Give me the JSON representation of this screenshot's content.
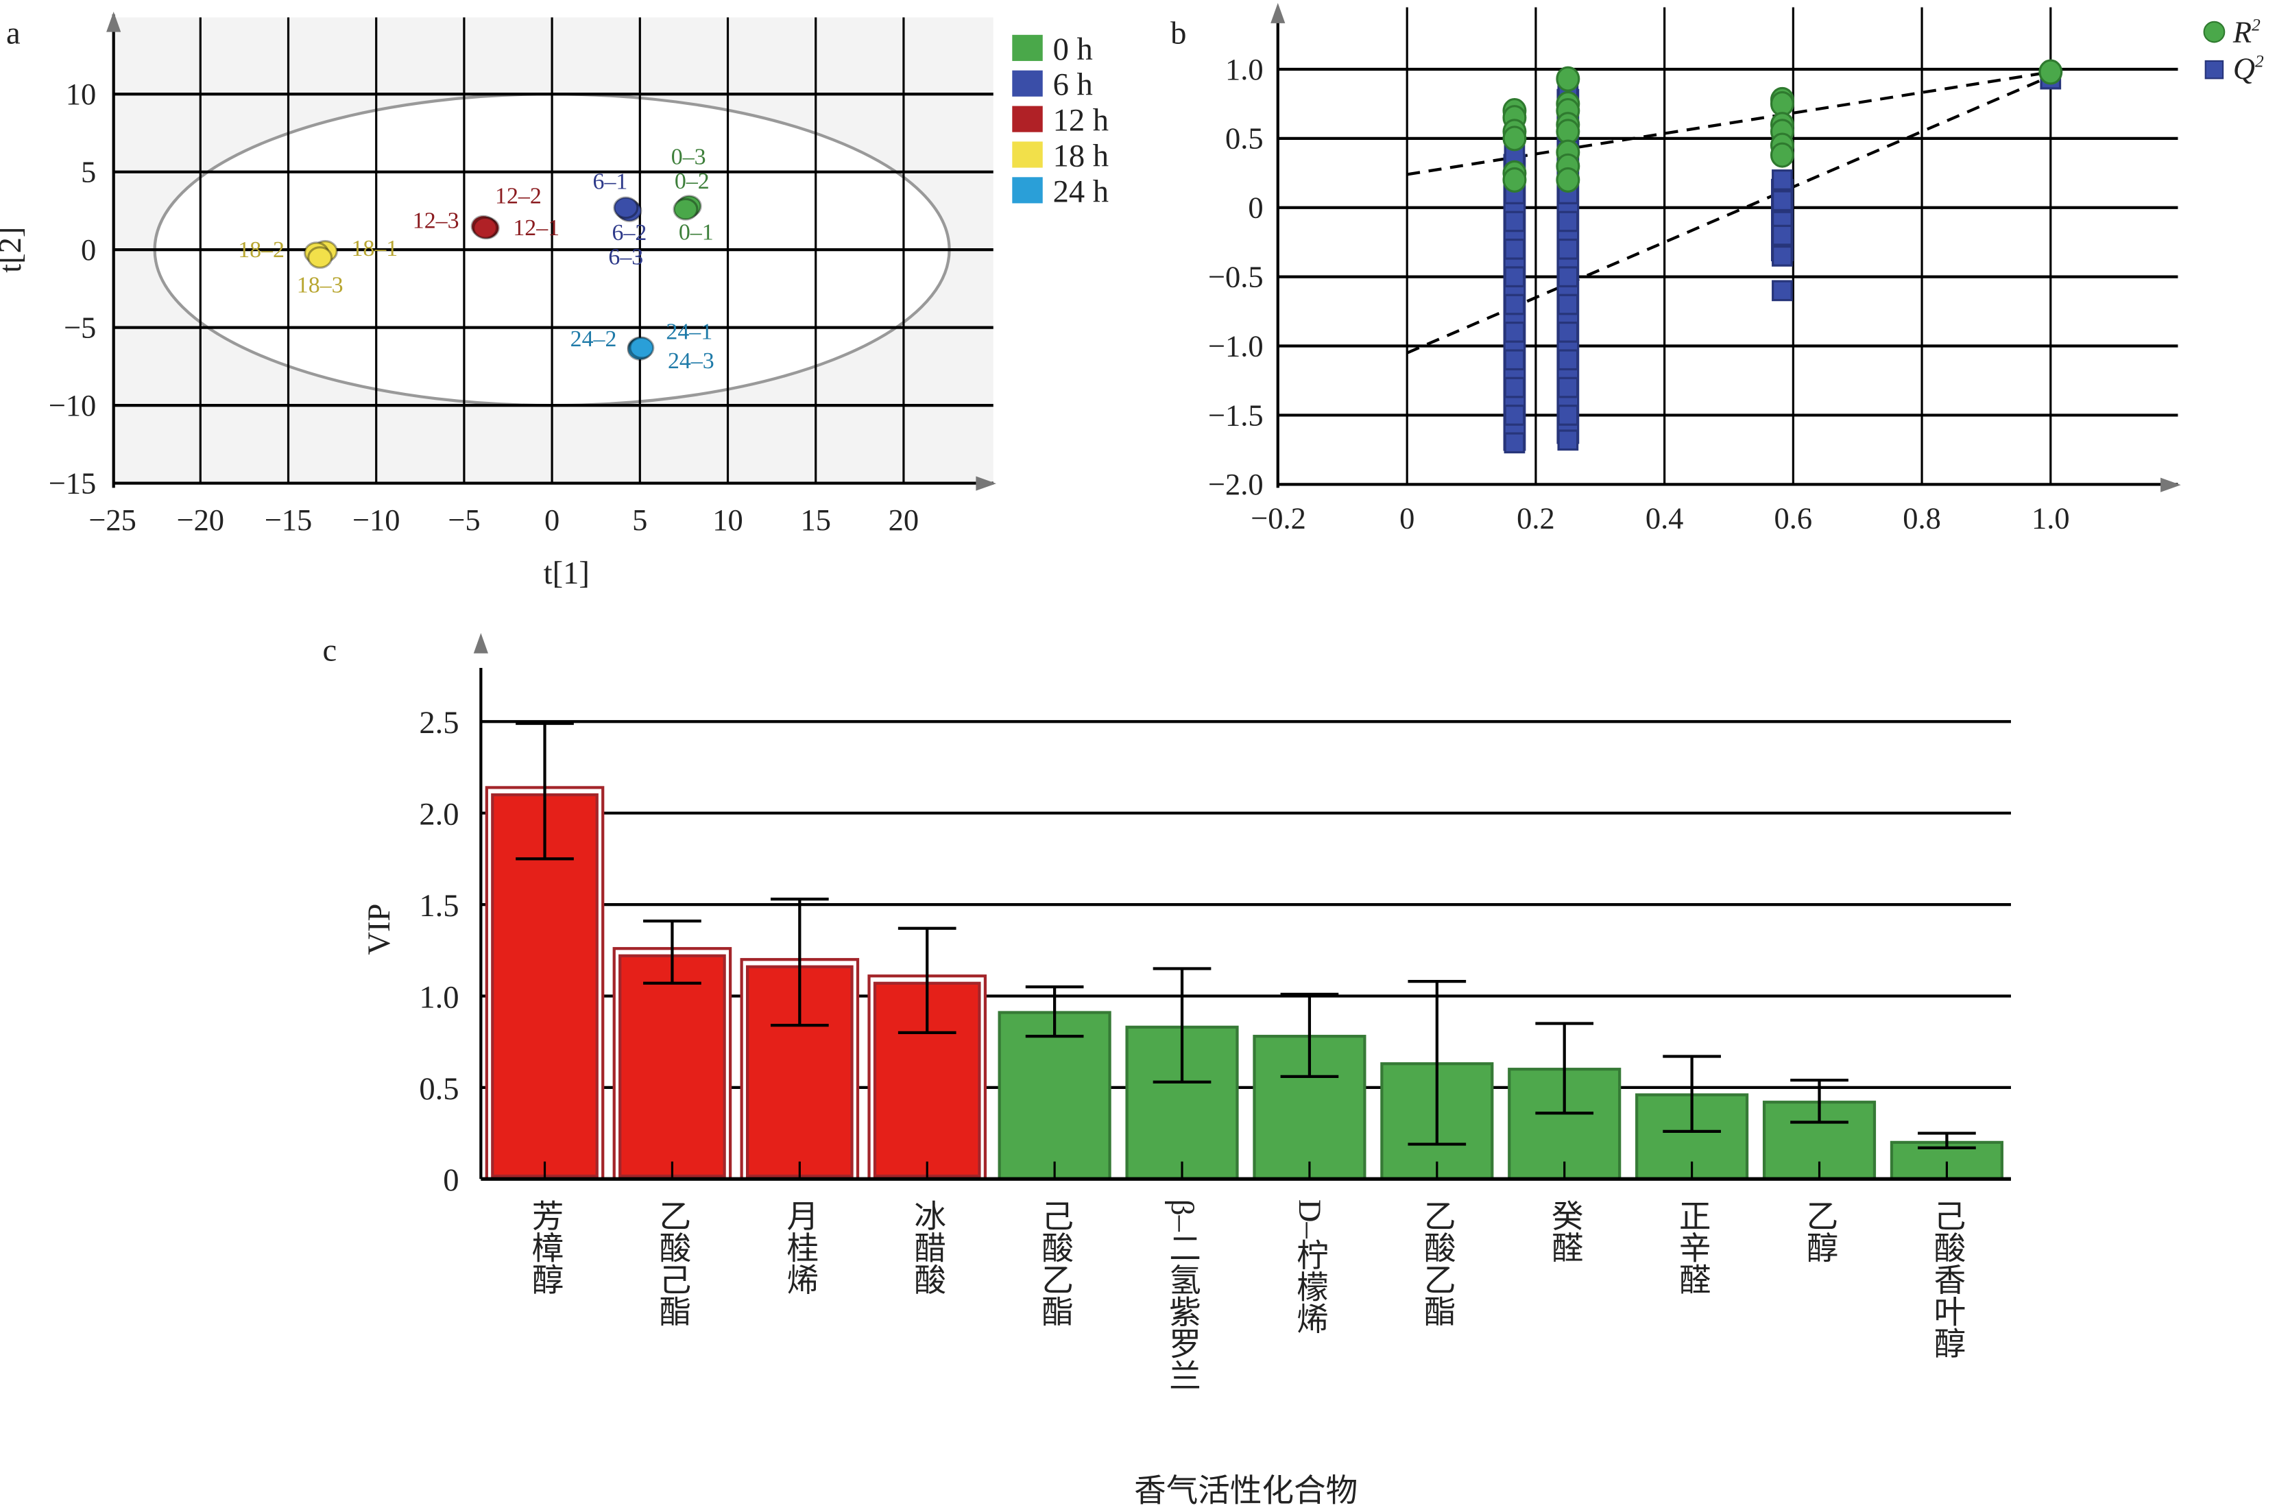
{
  "chart_data": [
    {
      "panel": "a",
      "type": "scatter",
      "xlabel": "t[1]",
      "ylabel": "t[2]",
      "xlim": [
        -25,
        25
      ],
      "ylim": [
        -15,
        14
      ],
      "xticks": [
        "-25",
        "-20",
        "-15",
        "-10",
        "-5",
        "0",
        "5",
        "10",
        "15",
        "20"
      ],
      "yticks": [
        "-15",
        "-10",
        "-5",
        "0",
        "5",
        "10"
      ],
      "ellipse": {
        "rx": 22.6,
        "ry": 10
      },
      "legend": [
        "0 h",
        "6 h",
        "12 h",
        "18 h",
        "24 h"
      ],
      "legend_placement": "right",
      "series": [
        {
          "name": "0 h",
          "color": "#4aa84a",
          "label_color": "#3d7f3a",
          "points": [
            {
              "x": 7.7,
              "y": 2.7,
              "label": "0–1"
            },
            {
              "x": 7.8,
              "y": 2.8,
              "label": "0–2"
            },
            {
              "x": 7.6,
              "y": 2.6,
              "label": "0–3"
            }
          ]
        },
        {
          "name": "6 h",
          "color": "#3a4ea8",
          "label_color": "#2e3a8a",
          "points": [
            {
              "x": 4.3,
              "y": 2.6,
              "label": "6–1"
            },
            {
              "x": 4.4,
              "y": 2.5,
              "label": "6–2"
            },
            {
              "x": 4.2,
              "y": 2.7,
              "label": "6–3"
            }
          ]
        },
        {
          "name": "12 h",
          "color": "#b02126",
          "label_color": "#8a1a1e",
          "points": [
            {
              "x": -3.7,
              "y": 1.4,
              "label": "12–1"
            },
            {
              "x": -3.9,
              "y": 1.5,
              "label": "12–2"
            },
            {
              "x": -3.8,
              "y": 1.4,
              "label": "12–3"
            }
          ]
        },
        {
          "name": "18 h",
          "color": "#f2e04a",
          "label_color": "#b8a631",
          "points": [
            {
              "x": -12.9,
              "y": -0.1,
              "label": "18–1"
            },
            {
              "x": -13.4,
              "y": -0.2,
              "label": "18–2"
            },
            {
              "x": -13.2,
              "y": -0.5,
              "label": "18–3"
            }
          ]
        },
        {
          "name": "24 h",
          "color": "#2a9fd8",
          "label_color": "#1e7aa8",
          "points": [
            {
              "x": 5.0,
              "y": -6.3,
              "label": "24–1"
            },
            {
              "x": 5.0,
              "y": -6.4,
              "label": "24–2"
            },
            {
              "x": 5.1,
              "y": -6.3,
              "label": "24–3"
            }
          ]
        }
      ]
    },
    {
      "panel": "b",
      "type": "scatter",
      "xlim": [
        -0.2,
        1.2
      ],
      "ylim": [
        -2.0,
        1.4
      ],
      "xticks": [
        "-0.2",
        "0",
        "0.2",
        "0.4",
        "0.6",
        "0.8",
        "1.0"
      ],
      "yticks": [
        "-2.0",
        "-1.5",
        "-1.0",
        "-0.5",
        "0",
        "0.5",
        "1.0"
      ],
      "legend": [
        "R2",
        "Q2"
      ],
      "legend_placement": "top-right",
      "series": [
        {
          "name": "R2",
          "color": "#4aa84a",
          "points": [
            [
              0.167,
              0.7
            ],
            [
              0.167,
              0.65
            ],
            [
              0.167,
              0.55
            ],
            [
              0.167,
              0.5
            ],
            [
              0.167,
              0.25
            ],
            [
              0.167,
              0.2
            ],
            [
              0.25,
              0.93
            ],
            [
              0.25,
              0.75
            ],
            [
              0.25,
              0.7
            ],
            [
              0.25,
              0.6
            ],
            [
              0.25,
              0.55
            ],
            [
              0.25,
              0.4
            ],
            [
              0.25,
              0.3
            ],
            [
              0.25,
              0.2
            ],
            [
              0.583,
              0.78
            ],
            [
              0.583,
              0.75
            ],
            [
              0.583,
              0.6
            ],
            [
              0.583,
              0.55
            ],
            [
              0.583,
              0.45
            ],
            [
              0.583,
              0.38
            ],
            [
              1.0,
              0.98
            ]
          ]
        },
        {
          "name": "Q2",
          "color": "#3a4ea8",
          "points": [
            [
              0.167,
              0.38
            ],
            [
              0.167,
              0.1
            ],
            [
              0.167,
              -0.1
            ],
            [
              0.167,
              -0.3
            ],
            [
              0.167,
              -0.5
            ],
            [
              0.167,
              -0.7
            ],
            [
              0.167,
              -0.9
            ],
            [
              0.167,
              -1.1
            ],
            [
              0.167,
              -1.3
            ],
            [
              0.167,
              -1.5
            ],
            [
              0.167,
              -1.7
            ],
            [
              0.25,
              0.85
            ],
            [
              0.25,
              0.7
            ],
            [
              0.25,
              0.55
            ],
            [
              0.25,
              0.3
            ],
            [
              0.25,
              0.1
            ],
            [
              0.25,
              -0.1
            ],
            [
              0.25,
              -0.3
            ],
            [
              0.25,
              -0.5
            ],
            [
              0.25,
              -0.7
            ],
            [
              0.25,
              -0.9
            ],
            [
              0.25,
              -1.1
            ],
            [
              0.25,
              -1.3
            ],
            [
              0.25,
              -1.5
            ],
            [
              0.25,
              -1.68
            ],
            [
              0.583,
              0.2
            ],
            [
              0.583,
              0.05
            ],
            [
              0.583,
              -0.1
            ],
            [
              0.583,
              -0.2
            ],
            [
              0.583,
              -0.35
            ],
            [
              0.583,
              -0.6
            ],
            [
              1.0,
              0.93
            ]
          ]
        }
      ],
      "regression_lines": [
        {
          "name": "R2",
          "intercept": 0.24,
          "end": [
            1.0,
            0.98
          ]
        },
        {
          "name": "Q2",
          "intercept": -1.05,
          "end": [
            1.0,
            0.95
          ]
        }
      ]
    },
    {
      "panel": "c",
      "type": "bar",
      "ylabel": "VIP",
      "xlabel": "香气活性化合物",
      "ylim": [
        0,
        2.8
      ],
      "yticks": [
        "0",
        "0.5",
        "1.0",
        "1.5",
        "2.0",
        "2.5"
      ],
      "categories": [
        "芳樟醇",
        "乙酸己酯",
        "月桂烯",
        "冰醋酸",
        "己酸乙酯",
        "β–二氢紫罗兰",
        "D–柠檬烯",
        "乙酸乙酯",
        "癸醛",
        "正辛醛",
        "乙醇",
        "己酸香叶醇"
      ],
      "values": [
        2.1,
        1.22,
        1.16,
        1.07,
        0.91,
        0.83,
        0.78,
        0.63,
        0.6,
        0.46,
        0.42,
        0.2
      ],
      "error_low": [
        1.75,
        1.07,
        0.84,
        0.8,
        0.78,
        0.53,
        0.56,
        0.19,
        0.36,
        0.26,
        0.31,
        0.17
      ],
      "error_high": [
        2.49,
        1.41,
        1.53,
        1.37,
        1.05,
        1.15,
        1.01,
        1.08,
        0.85,
        0.67,
        0.54,
        0.25
      ],
      "highlight": [
        true,
        true,
        true,
        true,
        false,
        false,
        false,
        false,
        false,
        false,
        false,
        false
      ],
      "colors": {
        "high": "#e52019",
        "low": "#4ea84c"
      }
    }
  ],
  "panel_labels": [
    "a",
    "b",
    "c"
  ],
  "legend_b": {
    "r2": "R",
    "q2": "Q",
    "sup": "2"
  }
}
